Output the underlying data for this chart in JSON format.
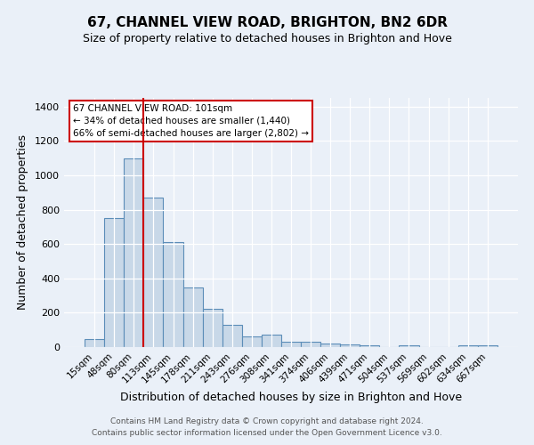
{
  "title": "67, CHANNEL VIEW ROAD, BRIGHTON, BN2 6DR",
  "subtitle": "Size of property relative to detached houses in Brighton and Hove",
  "xlabel": "Distribution of detached houses by size in Brighton and Hove",
  "ylabel": "Number of detached properties",
  "categories": [
    "15sqm",
    "48sqm",
    "80sqm",
    "113sqm",
    "145sqm",
    "178sqm",
    "211sqm",
    "243sqm",
    "276sqm",
    "308sqm",
    "341sqm",
    "374sqm",
    "406sqm",
    "439sqm",
    "471sqm",
    "504sqm",
    "537sqm",
    "569sqm",
    "602sqm",
    "634sqm",
    "667sqm"
  ],
  "values": [
    47,
    750,
    1100,
    870,
    610,
    345,
    225,
    130,
    60,
    70,
    33,
    30,
    22,
    15,
    10,
    0,
    10,
    0,
    0,
    10,
    10
  ],
  "bar_color": "#c8d8e8",
  "bar_edge_color": "#5b8db8",
  "vline_color": "#cc0000",
  "annotation_line1": "67 CHANNEL VIEW ROAD: 101sqm",
  "annotation_line2": "← 34% of detached houses are smaller (1,440)",
  "annotation_line3": "66% of semi-detached houses are larger (2,802) →",
  "annotation_box_color": "#ffffff",
  "annotation_box_edge": "#cc0000",
  "ylim": [
    0,
    1450
  ],
  "yticks": [
    0,
    200,
    400,
    600,
    800,
    1000,
    1200,
    1400
  ],
  "bg_color": "#eaf0f8",
  "footer1": "Contains HM Land Registry data © Crown copyright and database right 2024.",
  "footer2": "Contains public sector information licensed under the Open Government Licence v3.0.",
  "title_fontsize": 11,
  "subtitle_fontsize": 9
}
